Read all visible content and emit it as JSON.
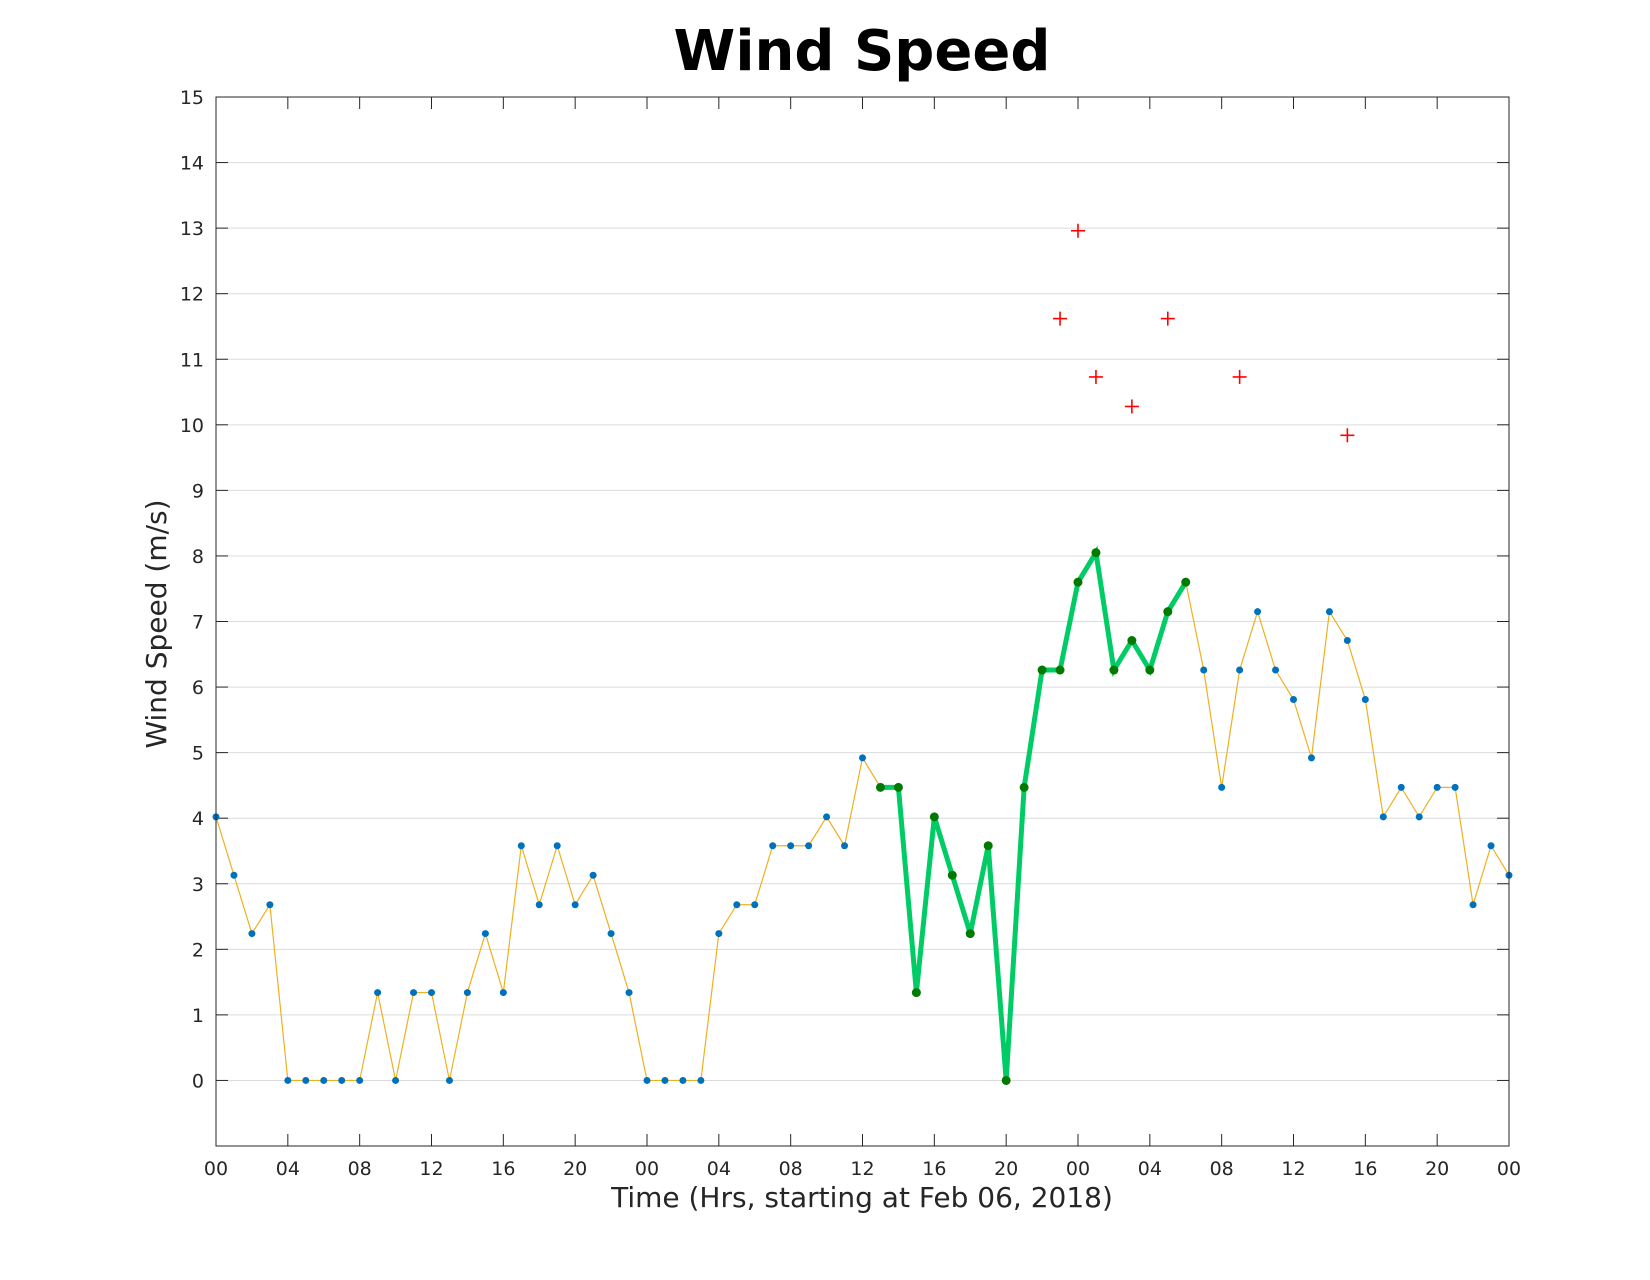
{
  "chart_data": {
    "type": "line",
    "title": "Wind Speed",
    "xlabel": "Time (Hrs, starting at Feb 06, 2018)",
    "ylabel": "Wind Speed (m/s)",
    "xlim": [
      0,
      72
    ],
    "ylim": [
      -1,
      15
    ],
    "grid": "horizontal",
    "x_tick_positions": [
      0,
      4,
      8,
      12,
      16,
      20,
      24,
      28,
      32,
      36,
      40,
      44,
      48,
      52,
      56,
      60,
      64,
      68,
      72
    ],
    "x_tick_labels": [
      "00",
      "04",
      "08",
      "12",
      "16",
      "20",
      "00",
      "04",
      "08",
      "12",
      "16",
      "20",
      "00",
      "04",
      "08",
      "12",
      "16",
      "20",
      "00"
    ],
    "y_ticks": [
      0,
      1,
      2,
      3,
      4,
      5,
      6,
      7,
      8,
      9,
      10,
      11,
      12,
      13,
      14,
      15
    ],
    "series": [
      {
        "style": "thin-line-with-dots",
        "line_color": "#EDB120",
        "marker_color": "#0072BD",
        "x": [
          0,
          1,
          2,
          3,
          4,
          5,
          6,
          7,
          8,
          9,
          10,
          11,
          12,
          13,
          14,
          15,
          16,
          17,
          18,
          19,
          20,
          21,
          22,
          23,
          24,
          25,
          26,
          27,
          28,
          29,
          30,
          31,
          32,
          33,
          34,
          35,
          36,
          37,
          38,
          39,
          40,
          41,
          42,
          43,
          44,
          45,
          46,
          47,
          48,
          49,
          50,
          51,
          52,
          53,
          54,
          55,
          56,
          57,
          58,
          59,
          60,
          61,
          62,
          63,
          64,
          65,
          66,
          67,
          68,
          69,
          70,
          71,
          72
        ],
        "y": [
          4.02,
          3.13,
          2.24,
          2.68,
          0,
          0,
          0,
          0,
          0,
          1.34,
          0,
          1.34,
          1.34,
          0,
          1.34,
          2.24,
          1.34,
          3.58,
          2.68,
          3.58,
          2.68,
          3.13,
          2.24,
          1.34,
          0,
          0,
          0,
          0,
          2.24,
          2.68,
          2.68,
          3.58,
          3.58,
          3.58,
          4.02,
          3.58,
          4.92,
          4.47,
          4.47,
          1.34,
          4.02,
          3.13,
          2.24,
          3.58,
          0,
          4.47,
          6.26,
          6.26,
          7.6,
          8.05,
          6.26,
          6.71,
          6.26,
          7.15,
          7.6,
          6.26,
          4.47,
          6.26,
          7.15,
          6.26,
          5.81,
          4.92,
          7.15,
          6.71,
          5.81,
          4.02,
          4.47,
          4.02,
          4.47,
          4.47,
          2.68,
          3.58,
          3.13
        ]
      },
      {
        "style": "thick-line-with-dots",
        "line_color": "#00CC66",
        "marker_color": "#007A00",
        "x": [
          37,
          38,
          39,
          40,
          41,
          42,
          43,
          44,
          45,
          46,
          47,
          48,
          49,
          50,
          51,
          52,
          53,
          54
        ],
        "y": [
          4.47,
          4.47,
          1.34,
          4.02,
          3.13,
          2.24,
          3.58,
          0,
          4.47,
          6.26,
          6.26,
          7.6,
          8.05,
          6.26,
          6.71,
          6.26,
          7.15,
          7.6
        ]
      },
      {
        "style": "plus-markers",
        "marker_color": "#FF0000",
        "x": [
          47,
          48,
          49,
          51,
          53,
          57,
          63
        ],
        "y": [
          11.62,
          12.96,
          10.73,
          10.28,
          11.62,
          10.73,
          9.84
        ]
      }
    ]
  }
}
